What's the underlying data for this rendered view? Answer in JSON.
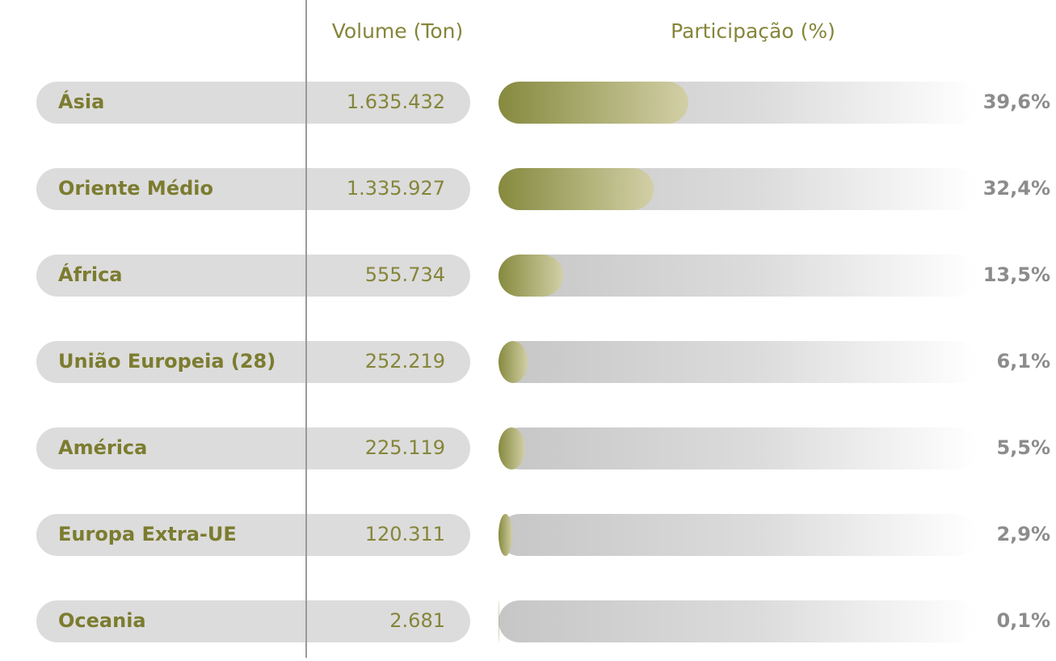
{
  "chart_data": {
    "type": "bar",
    "orientation": "horizontal",
    "volume_header": "Volume (Ton)",
    "share_header": "Participação (%)",
    "categories": [
      "Ásia",
      "Oriente Médio",
      "África",
      "União Europeia (28)",
      "América",
      "Europa Extra-UE",
      "Oceania"
    ],
    "volumes": [
      1635432,
      1335927,
      555734,
      252219,
      225119,
      120311,
      2681
    ],
    "volume_labels": [
      "1.635.432",
      "1.335.927",
      "555.734",
      "252.219",
      "225.119",
      "120.311",
      "2.681"
    ],
    "values": [
      39.6,
      32.4,
      13.5,
      6.1,
      5.5,
      2.9,
      0.1
    ],
    "value_labels": [
      "39,6%",
      "32,4%",
      "13,5%",
      "6,1%",
      "5,5%",
      "2,9%",
      "0,1%"
    ],
    "xlim": [
      0,
      100
    ],
    "color": "#868a3e"
  }
}
